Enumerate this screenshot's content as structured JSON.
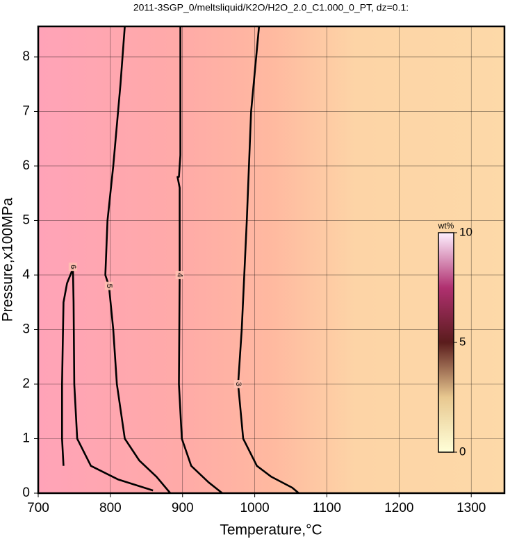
{
  "chart_data": {
    "type": "contour",
    "title": "2011-3SGP_0/meltsliquid/K2O/H2O_2.0_C1.000_0_PT, dz=0.1:",
    "x_label": "Temperature,°C",
    "y_label": "Pressure,x100MPa",
    "xlim": [
      700,
      1346
    ],
    "ylim": [
      0,
      8.56
    ],
    "xticks": [
      700,
      800,
      900,
      1000,
      1100,
      1200,
      1300
    ],
    "yticks": [
      0,
      1,
      2,
      3,
      4,
      5,
      6,
      7,
      8
    ],
    "grid": true,
    "series": [
      {
        "name": "3",
        "color": "#000000",
        "x": [
          1061,
          1052,
          1023,
          1003,
          984,
          977,
          982,
          989,
          995,
          1006
        ],
        "y": [
          0,
          0.1,
          0.3,
          0.5,
          1,
          2,
          3,
          5,
          7,
          8.56
        ]
      },
      {
        "name": "4",
        "color": "#000000",
        "x": [
          955,
          936,
          912,
          899,
          895,
          896,
          896,
          893,
          895,
          897,
          897
        ],
        "y": [
          0,
          0.2,
          0.5,
          1,
          2,
          4,
          5.6,
          5.8,
          5.8,
          6.2,
          8.56
        ]
      },
      {
        "name": "5",
        "color": "#000000",
        "x": [
          883,
          864,
          840,
          820,
          809,
          804,
          798,
          793,
          796,
          804,
          814,
          820
        ],
        "y": [
          0,
          0.3,
          0.6,
          1,
          2,
          3,
          3.8,
          4,
          5,
          6,
          7.5,
          8.56
        ]
      },
      {
        "name": "6",
        "color": "#000000",
        "x": [
          735,
          733,
          733,
          735,
          740,
          746,
          748,
          749,
          750,
          754,
          773,
          811,
          859
        ],
        "y": [
          0.5,
          1,
          2,
          3.5,
          3.85,
          4.05,
          4.15,
          3.5,
          2,
          1,
          0.5,
          0.25,
          0.05
        ]
      }
    ],
    "colorbar": {
      "label": "wt%",
      "lim": [
        0,
        10
      ],
      "ticks": [
        0,
        5,
        10
      ]
    }
  }
}
